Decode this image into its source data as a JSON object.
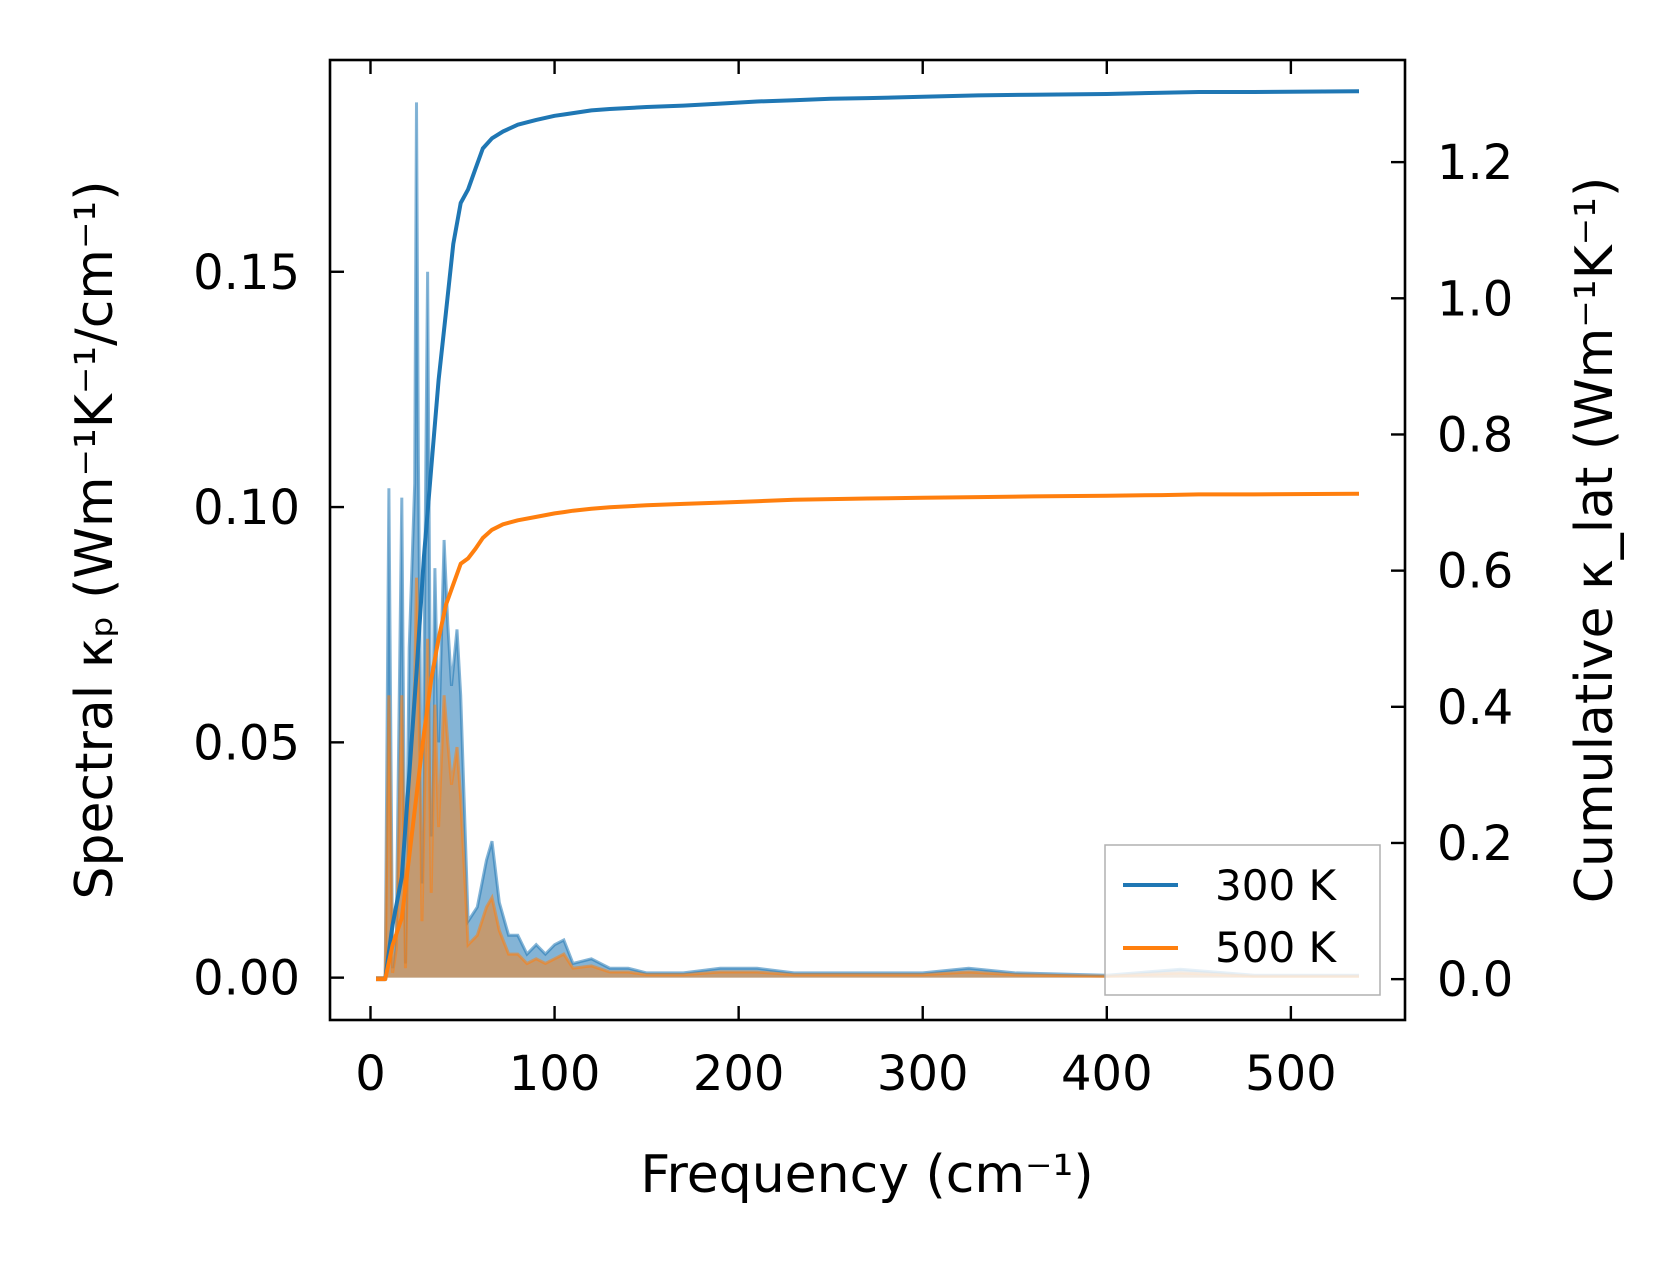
{
  "chart_data": {
    "type": "area",
    "xlabel": "Frequency (cm⁻¹)",
    "ylabel_left": "Spectral κₚ (Wm⁻¹K⁻¹/cm⁻¹)",
    "ylabel_right": "Cumulative κ_lat (Wm⁻¹K⁻¹)",
    "xlim": [
      -22,
      562
    ],
    "ylim_left": [
      -0.009,
      0.195
    ],
    "ylim_right": [
      -0.06,
      1.35
    ],
    "x_ticks": [
      0,
      100,
      200,
      300,
      400,
      500
    ],
    "x_tick_labels": [
      "0",
      "100",
      "200",
      "300",
      "400",
      "500"
    ],
    "y_left_ticks": [
      0.0,
      0.05,
      0.1,
      0.15
    ],
    "y_left_tick_labels": [
      "0.00",
      "0.05",
      "0.10",
      "0.15"
    ],
    "y_right_ticks": [
      0.0,
      0.2,
      0.4,
      0.6,
      0.8,
      1.0,
      1.2
    ],
    "y_right_tick_labels": [
      "0.0",
      "0.2",
      "0.4",
      "0.6",
      "0.8",
      "1.0",
      "1.2"
    ],
    "legend": {
      "position": "lower right",
      "entries": [
        {
          "label": "300 K",
          "color": "#1f77b4"
        },
        {
          "label": "500 K",
          "color": "#ff7f0e"
        }
      ]
    },
    "series": [
      {
        "name": "300 K",
        "color": "#1f77b4",
        "spectral": {
          "x": [
            3,
            8,
            10,
            12,
            14,
            17,
            19,
            21,
            24,
            25,
            26,
            28,
            31,
            33,
            35,
            37,
            40,
            42,
            44,
            47,
            49,
            53,
            58,
            63,
            66,
            70,
            75,
            80,
            85,
            90,
            95,
            100,
            105,
            110,
            120,
            130,
            140,
            150,
            170,
            190,
            210,
            230,
            260,
            300,
            325,
            350,
            400,
            440,
            480,
            537
          ],
          "y": [
            0,
            0,
            0.104,
            0.002,
            0.01,
            0.102,
            0.003,
            0.07,
            0.105,
            0.186,
            0.11,
            0.02,
            0.15,
            0.03,
            0.087,
            0.05,
            0.093,
            0.075,
            0.062,
            0.074,
            0.06,
            0.012,
            0.015,
            0.025,
            0.029,
            0.016,
            0.009,
            0.009,
            0.005,
            0.007,
            0.005,
            0.007,
            0.008,
            0.003,
            0.004,
            0.002,
            0.002,
            0.001,
            0.001,
            0.002,
            0.002,
            0.001,
            0.001,
            0.001,
            0.002,
            0.001,
            0.0005,
            0.0018,
            0.0005,
            0.0005
          ]
        },
        "cumulative": {
          "x": [
            3,
            8,
            12,
            17,
            21,
            25,
            29,
            33,
            37,
            41,
            45,
            49,
            53,
            57,
            61,
            66,
            72,
            80,
            90,
            100,
            105,
            110,
            120,
            130,
            150,
            170,
            190,
            210,
            230,
            250,
            270,
            300,
            330,
            360,
            400,
            430,
            450,
            480,
            537
          ],
          "y": [
            0,
            0,
            0.08,
            0.15,
            0.3,
            0.45,
            0.62,
            0.75,
            0.88,
            0.98,
            1.08,
            1.14,
            1.16,
            1.19,
            1.22,
            1.235,
            1.245,
            1.255,
            1.262,
            1.268,
            1.27,
            1.272,
            1.276,
            1.278,
            1.281,
            1.283,
            1.286,
            1.289,
            1.291,
            1.293,
            1.294,
            1.296,
            1.298,
            1.299,
            1.3,
            1.302,
            1.303,
            1.303,
            1.304
          ]
        }
      },
      {
        "name": "500 K",
        "color": "#ff7f0e",
        "spectral": {
          "x": [
            3,
            8,
            10,
            12,
            14,
            17,
            19,
            21,
            24,
            25,
            26,
            28,
            31,
            33,
            35,
            37,
            40,
            42,
            44,
            47,
            49,
            53,
            58,
            63,
            66,
            70,
            75,
            80,
            85,
            90,
            95,
            100,
            105,
            110,
            120,
            130,
            140,
            150,
            170,
            190,
            210,
            230,
            260,
            300,
            325,
            350,
            400,
            440,
            480,
            537
          ],
          "y": [
            0,
            0,
            0.06,
            0.001,
            0.006,
            0.06,
            0.002,
            0.042,
            0.063,
            0.085,
            0.066,
            0.012,
            0.072,
            0.018,
            0.058,
            0.032,
            0.06,
            0.05,
            0.041,
            0.049,
            0.038,
            0.007,
            0.009,
            0.015,
            0.017,
            0.01,
            0.005,
            0.005,
            0.003,
            0.004,
            0.003,
            0.004,
            0.005,
            0.002,
            0.0025,
            0.0012,
            0.0012,
            0.0006,
            0.0006,
            0.0012,
            0.0012,
            0.0006,
            0.0006,
            0.0006,
            0.0012,
            0.0006,
            0.0003,
            0.001,
            0.0003,
            0.0003
          ]
        },
        "cumulative": {
          "x": [
            3,
            8,
            12,
            17,
            21,
            25,
            29,
            33,
            37,
            41,
            45,
            49,
            53,
            57,
            61,
            66,
            72,
            80,
            90,
            100,
            105,
            110,
            120,
            130,
            150,
            170,
            190,
            210,
            230,
            250,
            270,
            300,
            330,
            360,
            400,
            430,
            450,
            480,
            537
          ],
          "y": [
            0,
            0,
            0.05,
            0.09,
            0.18,
            0.27,
            0.36,
            0.44,
            0.5,
            0.55,
            0.58,
            0.61,
            0.618,
            0.632,
            0.648,
            0.66,
            0.668,
            0.674,
            0.679,
            0.684,
            0.686,
            0.688,
            0.691,
            0.693,
            0.696,
            0.698,
            0.7,
            0.702,
            0.704,
            0.705,
            0.706,
            0.707,
            0.708,
            0.709,
            0.71,
            0.711,
            0.712,
            0.712,
            0.713
          ]
        }
      }
    ]
  }
}
